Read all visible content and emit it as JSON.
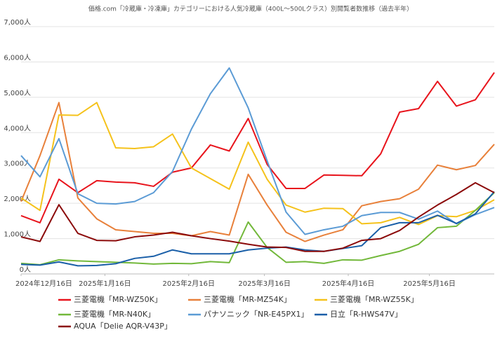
{
  "chart_data": {
    "type": "line",
    "title": "価格.com「冷蔵庫・冷凍庫」カテゴリーにおける人気冷蔵庫（400L〜500Lクラス）別閲覧者数推移（過去半年）",
    "x": [
      "2024-12-16",
      "2024-12-23",
      "2024-12-30",
      "2025-01-06",
      "2025-01-13",
      "2025-01-20",
      "2025-01-27",
      "2025-02-03",
      "2025-02-10",
      "2025-02-17",
      "2025-02-24",
      "2025-03-03",
      "2025-03-10",
      "2025-03-17",
      "2025-03-24",
      "2025-03-31",
      "2025-04-07",
      "2025-04-14",
      "2025-04-21",
      "2025-04-28",
      "2025-05-05",
      "2025-05-12",
      "2025-05-19",
      "2025-05-26",
      "2025-06-02",
      "2025-06-09"
    ],
    "xlim": [
      "2024-12-16",
      "2025-06-09"
    ],
    "xticks": [
      {
        "value": "2024-12-16",
        "label": "2024年12月16日"
      },
      {
        "value": "2025-01-16",
        "label": "2025年1月16日"
      },
      {
        "value": "2025-02-16",
        "label": "2025年2月16日"
      },
      {
        "value": "2025-03-16",
        "label": "2025年3月16日"
      },
      {
        "value": "2025-04-16",
        "label": "2025年4月16日"
      },
      {
        "value": "2025-05-16",
        "label": "2025年5月16日"
      }
    ],
    "ylim": [
      0,
      7000
    ],
    "yticks": [
      {
        "value": 0,
        "label": "0人"
      },
      {
        "value": 1000,
        "label": "1,000人"
      },
      {
        "value": 2000,
        "label": "2,000人"
      },
      {
        "value": 3000,
        "label": "3,000人"
      },
      {
        "value": 4000,
        "label": "4,000人"
      },
      {
        "value": 5000,
        "label": "5,000人"
      },
      {
        "value": 6000,
        "label": "6,000人"
      },
      {
        "value": 7000,
        "label": "7,000人"
      }
    ],
    "grid": true,
    "series": [
      {
        "name": "三菱電機「MR-WZ50K」",
        "color": "#e8141c",
        "values": [
          1650,
          1450,
          2680,
          2300,
          2640,
          2600,
          2580,
          2480,
          2880,
          3000,
          3650,
          3480,
          4400,
          3100,
          2420,
          2420,
          2800,
          2790,
          2780,
          3400,
          4580,
          4680,
          5450,
          4750,
          4930,
          5700
        ]
      },
      {
        "name": "三菱電機「MR-MZ54K」",
        "color": "#e8803a",
        "values": [
          2050,
          3350,
          4850,
          2150,
          1560,
          1250,
          1200,
          1150,
          1150,
          1080,
          1200,
          1100,
          2820,
          1950,
          1180,
          920,
          1100,
          1250,
          1930,
          2050,
          2130,
          2400,
          3080,
          2950,
          3070,
          3670
        ]
      },
      {
        "name": "三菱電機「MR-WZ55K」",
        "color": "#f5c21b",
        "values": [
          2150,
          1800,
          4500,
          4490,
          4850,
          3570,
          3550,
          3600,
          3960,
          3000,
          2700,
          2400,
          3730,
          2680,
          1950,
          1750,
          1860,
          1850,
          1420,
          1450,
          1600,
          1400,
          1650,
          1620,
          1800,
          2100
        ]
      },
      {
        "name": "三菱電機「MR-N40K」",
        "color": "#72b83a",
        "values": [
          300,
          260,
          400,
          370,
          350,
          330,
          310,
          280,
          300,
          290,
          350,
          320,
          1470,
          750,
          330,
          350,
          300,
          400,
          390,
          520,
          640,
          840,
          1310,
          1350,
          1800,
          2300
        ]
      },
      {
        "name": "パナソニック「NR-E45PX1」",
        "color": "#5b9bd5",
        "values": [
          3350,
          2750,
          3830,
          2270,
          2000,
          1980,
          2050,
          2300,
          2900,
          4100,
          5100,
          5830,
          4700,
          3200,
          1750,
          1120,
          1250,
          1350,
          1650,
          1740,
          1740,
          1550,
          1780,
          1420,
          1680,
          1880
        ]
      },
      {
        "name": "日立「R-HWS47V」",
        "color": "#1a5fa8",
        "values": [
          270,
          250,
          340,
          230,
          240,
          290,
          440,
          500,
          680,
          570,
          570,
          570,
          680,
          730,
          760,
          680,
          640,
          720,
          800,
          1310,
          1450,
          1450,
          1660,
          1430,
          1700,
          2330
        ]
      },
      {
        "name": "AQUA「Delie AQR-V43P」",
        "color": "#8b0a0a",
        "values": [
          1050,
          920,
          1960,
          1150,
          950,
          940,
          1050,
          1100,
          1180,
          1080,
          1000,
          930,
          840,
          760,
          750,
          640,
          640,
          730,
          950,
          1000,
          1230,
          1610,
          1950,
          2250,
          2580,
          2300
        ]
      }
    ]
  }
}
